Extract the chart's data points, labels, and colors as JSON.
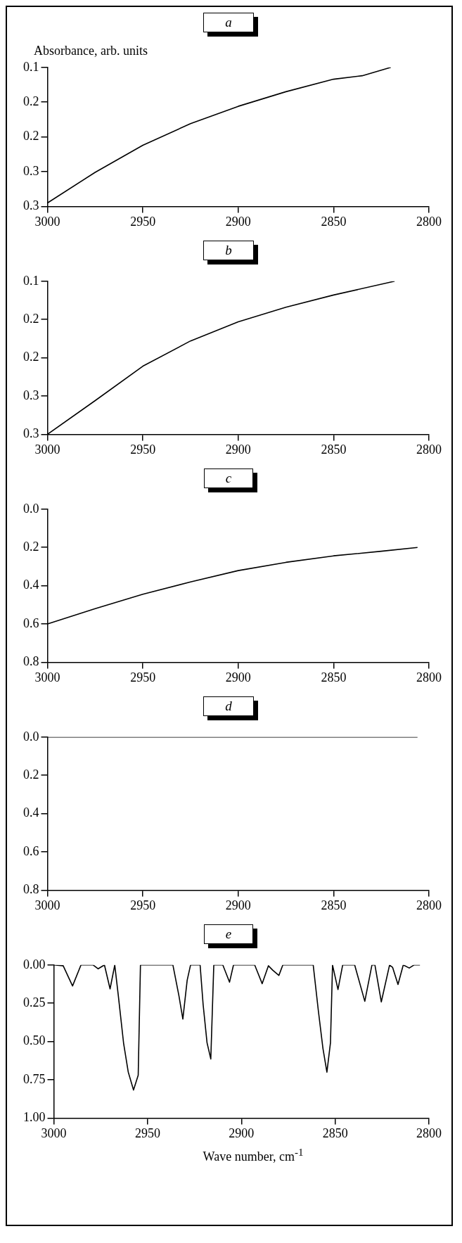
{
  "chart_data": [
    {
      "type": "line",
      "title": "a",
      "ylabel": "Absorbance, arb. units",
      "xlim": [
        3000,
        2800
      ],
      "xticks": [
        3000,
        2950,
        2900,
        2850,
        2800
      ],
      "ylim": [
        0.3,
        0.1
      ],
      "yticks": [
        0.1,
        {
          "value": 0.15,
          "label": "0.2"
        },
        0.2,
        {
          "value": 0.25,
          "label": "0.3"
        },
        0.3
      ],
      "marker": "none",
      "series": [
        {
          "color": "#000000",
          "x": [
            3000,
            2975,
            2950,
            2925,
            2900,
            2875,
            2850,
            2835,
            2820
          ],
          "values": [
            0.295,
            0.251,
            0.212,
            0.181,
            0.156,
            0.135,
            0.117,
            0.112,
            0.1
          ]
        }
      ]
    },
    {
      "type": "line",
      "title": "b",
      "xlim": [
        3000,
        2800
      ],
      "xticks": [
        3000,
        2950,
        2900,
        2850,
        2800
      ],
      "ylim": [
        0.3,
        0.1
      ],
      "yticks": [
        0.1,
        {
          "value": 0.15,
          "label": "0.2"
        },
        0.2,
        {
          "value": 0.25,
          "label": "0.3"
        },
        0.3
      ],
      "marker": "none",
      "series": [
        {
          "color": "#000000",
          "x": [
            3000,
            2975,
            2950,
            2925,
            2900,
            2875,
            2850,
            2818
          ],
          "values": [
            0.3,
            0.256,
            0.211,
            0.178,
            0.153,
            0.134,
            0.118,
            0.1
          ]
        }
      ]
    },
    {
      "type": "line",
      "title": "c",
      "xlim": [
        3000,
        2800
      ],
      "xticks": [
        3000,
        2950,
        2900,
        2850,
        2800
      ],
      "ylim": [
        0.8,
        0
      ],
      "yticks": [
        {
          "value": 0,
          "label": "0.0"
        },
        0.2,
        0.4,
        0.6,
        0.8
      ],
      "marker": "none",
      "series": [
        {
          "color": "#000000",
          "x": [
            3000,
            2975,
            2950,
            2925,
            2900,
            2875,
            2850,
            2825,
            2806
          ],
          "values": [
            0.6,
            0.52,
            0.445,
            0.38,
            0.321,
            0.278,
            0.244,
            0.22,
            0.2
          ]
        }
      ]
    },
    {
      "type": "line",
      "title": "d",
      "xlim": [
        3000,
        2800
      ],
      "xticks": [
        3000,
        2950,
        2900,
        2850,
        2800
      ],
      "ylim": [
        0.8,
        0
      ],
      "yticks": [
        {
          "value": 0,
          "label": "0.0"
        },
        0.2,
        0.4,
        0.6,
        0.8
      ],
      "marker": "none",
      "series": [
        {
          "color": "#000000",
          "x": [
            3000,
            2806
          ],
          "values": [
            0,
            0
          ]
        }
      ]
    },
    {
      "type": "line",
      "title": "e",
      "xlabel": "Wave number, cm$^{-1}$",
      "xlim": [
        3000,
        2800
      ],
      "xticks": [
        3000,
        2950,
        2900,
        2850,
        2800
      ],
      "ylim": [
        1,
        0
      ],
      "yticks": [
        {
          "value": 0,
          "label": "0.00"
        },
        0.25,
        {
          "value": 0.5,
          "label": "0.50"
        },
        0.75,
        {
          "value": 1,
          "label": "1.00"
        }
      ],
      "marker": "none",
      "series": [
        {
          "color": "#000000",
          "x": [
            3000,
            2995,
            2990,
            2985.5,
            2979,
            2976.4,
            2973,
            2970,
            2967.5,
            2965.6,
            2962.8,
            2960.3,
            2957.5,
            2955,
            2953.8,
            2936.5,
            2933.3,
            2931.2,
            2928.9,
            2927.1,
            2922,
            2920.4,
            2918.3,
            2916.3,
            2914.7,
            2909.9,
            2906.3,
            2904.2,
            2892.9,
            2888.9,
            2885.6,
            2883.2,
            2880,
            2877.9,
            2861.7,
            2859,
            2856.5,
            2854.4,
            2852.5,
            2851.4,
            2848.5,
            2846,
            2839.6,
            2834.2,
            2830.4,
            2828.8,
            2825.4,
            2821,
            2819.4,
            2816.5,
            2813.7,
            2810.5,
            2808,
            2804.8
          ],
          "values": [
            0,
            0.005,
            0.137,
            0,
            0,
            0.025,
            0,
            0.156,
            0,
            0.2,
            0.51,
            0.7,
            0.817,
            0.72,
            0,
            0,
            0.2,
            0.353,
            0.1,
            0,
            0,
            0.257,
            0.508,
            0.614,
            0,
            0,
            0.112,
            0,
            0,
            0.122,
            0.005,
            0.035,
            0.068,
            0,
            0,
            0.295,
            0.546,
            0.7,
            0.508,
            0,
            0.16,
            0,
            0,
            0.237,
            0,
            0,
            0.241,
            0,
            0.015,
            0.127,
            0,
            0.02,
            0,
            0
          ]
        }
      ]
    }
  ]
}
